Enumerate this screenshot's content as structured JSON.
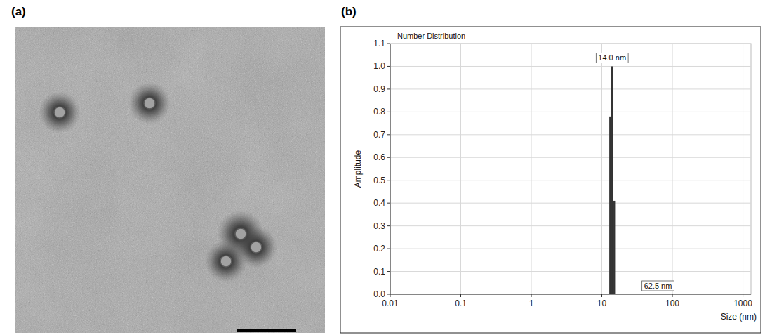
{
  "panel_labels": [
    "(a)",
    "(b)"
  ],
  "chart_data": {
    "type": "bar",
    "title": "Number Distribution",
    "x_label": "Size (nm)",
    "y_label": "Amplitude",
    "log": "x",
    "grid": true,
    "x": [
      13.1,
      14.0,
      15.0,
      62.5
    ],
    "values": [
      0.78,
      1.0,
      0.41,
      0.003
    ],
    "color": "#333333",
    "xlim": [
      0.01,
      1300
    ],
    "xticks": [
      0.01,
      0.1,
      1,
      10,
      100,
      1000
    ],
    "ylim": [
      0,
      1.1
    ],
    "yticks": [
      {
        "value": 0,
        "label": "0.0"
      },
      0.1,
      0.2,
      0.3,
      0.4,
      0.5,
      0.6,
      0.7,
      0.8,
      0.9,
      {
        "value": 1,
        "label": "1.0"
      },
      1.1
    ],
    "annotations": [
      {
        "text": "14.0 nm",
        "x": 14.0,
        "y": 1.0
      },
      {
        "text": "62.5 nm",
        "x": 62.5,
        "y": 0.0
      }
    ]
  }
}
